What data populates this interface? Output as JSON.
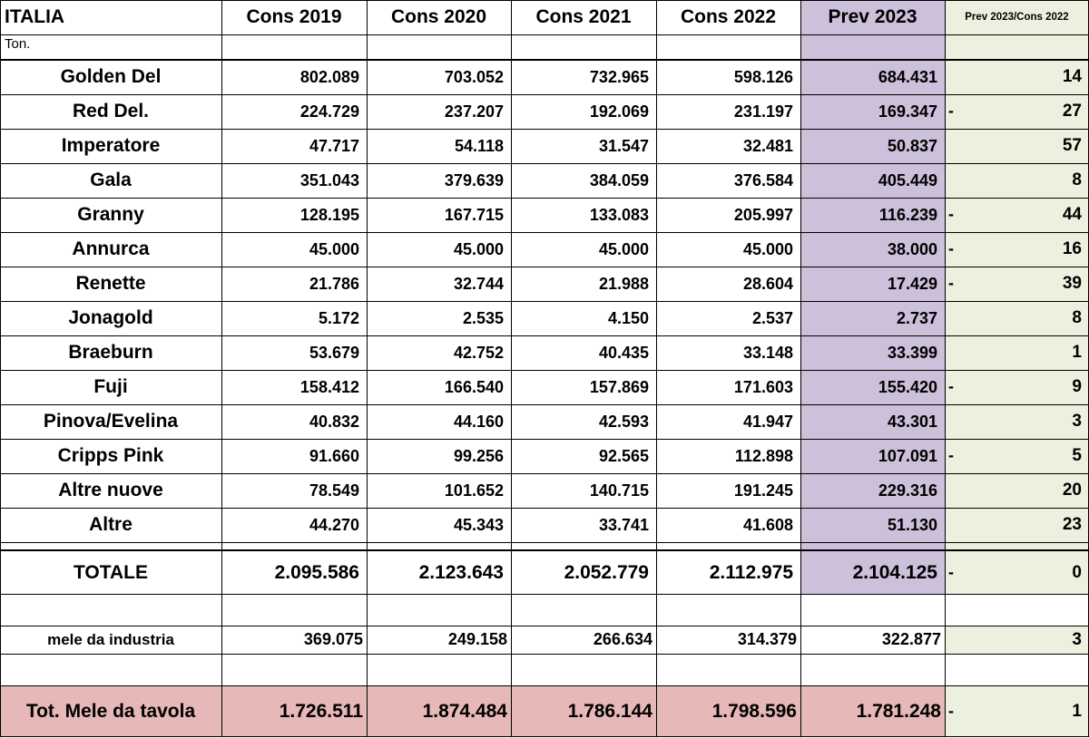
{
  "header": {
    "region": "ITALIA",
    "unit": "Ton.",
    "columns": [
      "Cons 2019",
      "Cons 2020",
      "Cons 2021",
      "Cons 2022",
      "Prev 2023",
      "Prev 2023/Cons 2022"
    ]
  },
  "varieties": [
    {
      "name": "Golden Del",
      "values": [
        "802.089",
        "703.052",
        "732.965",
        "598.126",
        "684.431"
      ],
      "neg": false,
      "change": "14"
    },
    {
      "name": "Red Del.",
      "values": [
        "224.729",
        "237.207",
        "192.069",
        "231.197",
        "169.347"
      ],
      "neg": true,
      "change": "27"
    },
    {
      "name": "Imperatore",
      "values": [
        "47.717",
        "54.118",
        "31.547",
        "32.481",
        "50.837"
      ],
      "neg": false,
      "change": "57"
    },
    {
      "name": "Gala",
      "values": [
        "351.043",
        "379.639",
        "384.059",
        "376.584",
        "405.449"
      ],
      "neg": false,
      "change": "8"
    },
    {
      "name": "Granny",
      "values": [
        "128.195",
        "167.715",
        "133.083",
        "205.997",
        "116.239"
      ],
      "neg": true,
      "change": "44"
    },
    {
      "name": "Annurca",
      "values": [
        "45.000",
        "45.000",
        "45.000",
        "45.000",
        "38.000"
      ],
      "neg": true,
      "change": "16"
    },
    {
      "name": "Renette",
      "values": [
        "21.786",
        "32.744",
        "21.988",
        "28.604",
        "17.429"
      ],
      "neg": true,
      "change": "39"
    },
    {
      "name": "Jonagold",
      "values": [
        "5.172",
        "2.535",
        "4.150",
        "2.537",
        "2.737"
      ],
      "neg": false,
      "change": "8"
    },
    {
      "name": "Braeburn",
      "values": [
        "53.679",
        "42.752",
        "40.435",
        "33.148",
        "33.399"
      ],
      "neg": false,
      "change": "1"
    },
    {
      "name": "Fuji",
      "values": [
        "158.412",
        "166.540",
        "157.869",
        "171.603",
        "155.420"
      ],
      "neg": true,
      "change": "9"
    },
    {
      "name": "Pinova/Evelina",
      "values": [
        "40.832",
        "44.160",
        "42.593",
        "41.947",
        "43.301"
      ],
      "neg": false,
      "change": "3"
    },
    {
      "name": "Cripps Pink",
      "values": [
        "91.660",
        "99.256",
        "92.565",
        "112.898",
        "107.091"
      ],
      "neg": true,
      "change": "5"
    },
    {
      "name": "Altre nuove",
      "values": [
        "78.549",
        "101.652",
        "140.715",
        "191.245",
        "229.316"
      ],
      "neg": false,
      "change": "20"
    },
    {
      "name": "Altre",
      "values": [
        "44.270",
        "45.343",
        "33.741",
        "41.608",
        "51.130"
      ],
      "neg": false,
      "change": "23"
    }
  ],
  "total": {
    "name": "TOTALE",
    "values": [
      "2.095.586",
      "2.123.643",
      "2.052.779",
      "2.112.975",
      "2.104.125"
    ],
    "neg": true,
    "change": "0"
  },
  "industry": {
    "name": "mele da industria",
    "values": [
      "369.075",
      "249.158",
      "266.634",
      "314.379",
      "322.877"
    ],
    "neg": false,
    "change": "3"
  },
  "table_apples": {
    "name": "Tot. Mele da tavola",
    "values": [
      "1.726.511",
      "1.874.484",
      "1.786.144",
      "1.798.596",
      "1.781.248"
    ],
    "neg": true,
    "change": "1"
  },
  "chart_data": {
    "type": "table",
    "title": "ITALIA",
    "unit": "Ton.",
    "columns": [
      "Cons 2019",
      "Cons 2020",
      "Cons 2021",
      "Cons 2022",
      "Prev 2023",
      "Prev 2023/Cons 2022"
    ],
    "rows": [
      {
        "label": "Golden Del",
        "values": [
          802089,
          703052,
          732965,
          598126,
          684431,
          14
        ]
      },
      {
        "label": "Red Del.",
        "values": [
          224729,
          237207,
          192069,
          231197,
          169347,
          -27
        ]
      },
      {
        "label": "Imperatore",
        "values": [
          47717,
          54118,
          31547,
          32481,
          50837,
          57
        ]
      },
      {
        "label": "Gala",
        "values": [
          351043,
          379639,
          384059,
          376584,
          405449,
          8
        ]
      },
      {
        "label": "Granny",
        "values": [
          128195,
          167715,
          133083,
          205997,
          116239,
          -44
        ]
      },
      {
        "label": "Annurca",
        "values": [
          45000,
          45000,
          45000,
          45000,
          38000,
          -16
        ]
      },
      {
        "label": "Renette",
        "values": [
          21786,
          32744,
          21988,
          28604,
          17429,
          -39
        ]
      },
      {
        "label": "Jonagold",
        "values": [
          5172,
          2535,
          4150,
          2537,
          2737,
          8
        ]
      },
      {
        "label": "Braeburn",
        "values": [
          53679,
          42752,
          40435,
          33148,
          33399,
          1
        ]
      },
      {
        "label": "Fuji",
        "values": [
          158412,
          166540,
          157869,
          171603,
          155420,
          -9
        ]
      },
      {
        "label": "Pinova/Evelina",
        "values": [
          40832,
          44160,
          42593,
          41947,
          43301,
          3
        ]
      },
      {
        "label": "Cripps Pink",
        "values": [
          91660,
          99256,
          92565,
          112898,
          107091,
          -5
        ]
      },
      {
        "label": "Altre nuove",
        "values": [
          78549,
          101652,
          140715,
          191245,
          229316,
          20
        ]
      },
      {
        "label": "Altre",
        "values": [
          44270,
          45343,
          33741,
          41608,
          51130,
          23
        ]
      },
      {
        "label": "TOTALE",
        "values": [
          2095586,
          2123643,
          2052779,
          2112975,
          2104125,
          0
        ]
      },
      {
        "label": "mele da industria",
        "values": [
          369075,
          249158,
          266634,
          314379,
          322877,
          3
        ]
      },
      {
        "label": "Tot. Mele da tavola",
        "values": [
          1726511,
          1874484,
          1786144,
          1798596,
          1781248,
          -1
        ]
      }
    ]
  }
}
